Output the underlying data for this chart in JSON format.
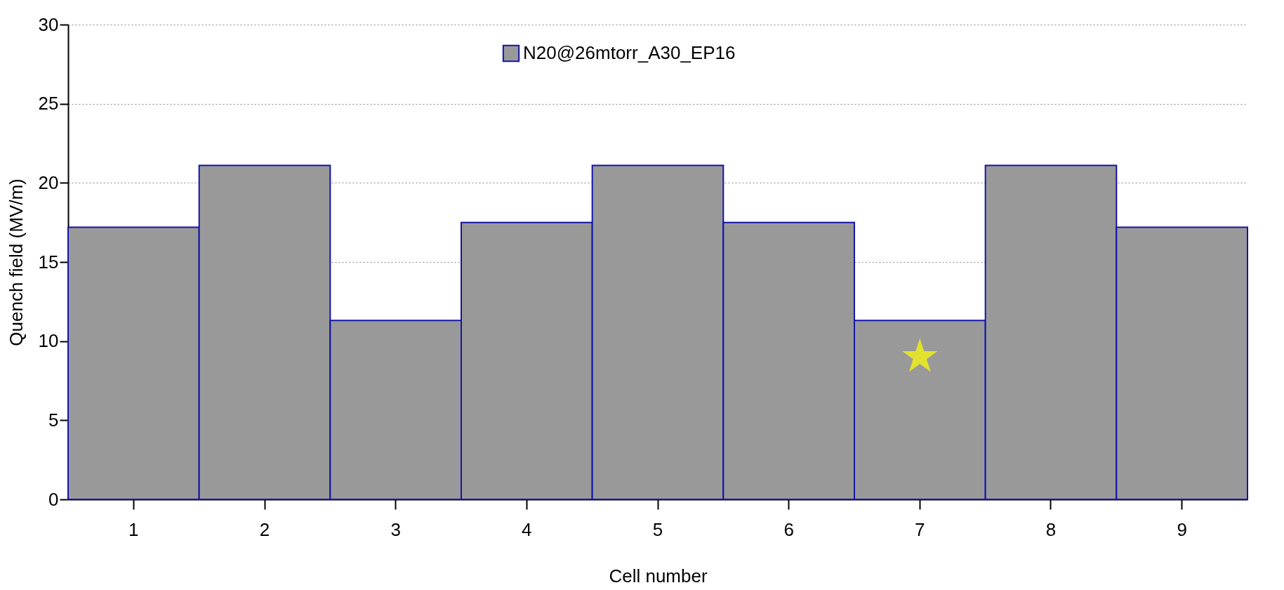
{
  "chart_data": {
    "type": "bar",
    "xlabel": "Cell number",
    "ylabel": "Quench field (MV/m)",
    "categories": [
      "1",
      "2",
      "3",
      "4",
      "5",
      "6",
      "7",
      "8",
      "9"
    ],
    "series": [
      {
        "name": "N20@26mtorr_A30_EP16",
        "color": "#999999",
        "values": [
          17.2,
          21.1,
          11.3,
          17.5,
          21.1,
          17.5,
          11.3,
          21.1,
          17.2
        ]
      },
      {
        "type": "scatter",
        "marker": "star",
        "color": "#ffff00",
        "x": [
          "7"
        ],
        "values": [
          9
        ]
      }
    ],
    "ylim": [
      0,
      30
    ],
    "yticks": [
      0,
      5,
      10,
      15,
      20,
      25,
      30
    ],
    "grid": "y",
    "legend": "top"
  }
}
